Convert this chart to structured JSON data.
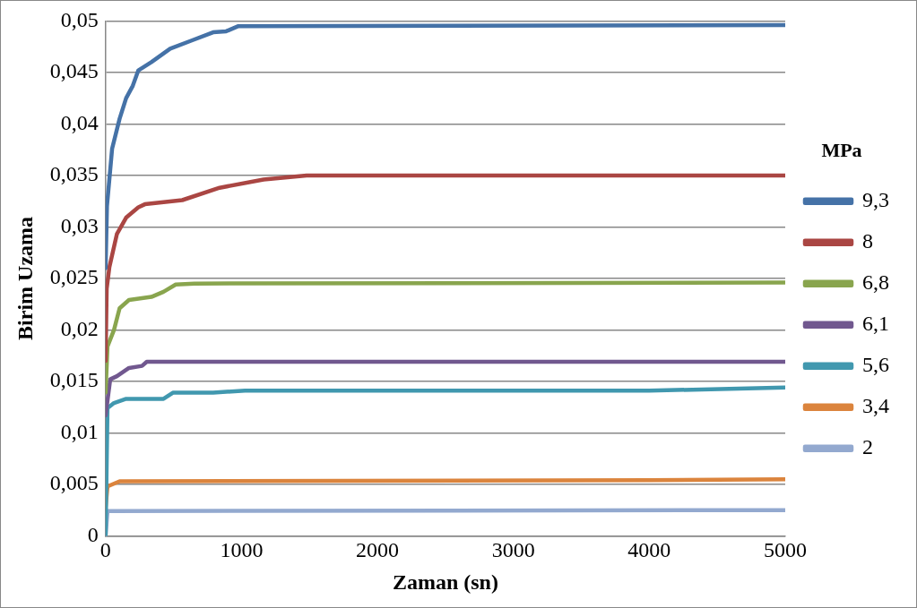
{
  "chart_data": {
    "type": "line",
    "xlabel": "Zaman (sn)",
    "ylabel": "Birim Uzama",
    "legend_title": "MPa",
    "xlim": [
      0,
      5000
    ],
    "xticks": [
      0,
      1000,
      2000,
      3000,
      4000,
      5000
    ],
    "ylim": [
      0,
      0.05
    ],
    "yticks": [
      {
        "value": 0,
        "label": "0"
      },
      {
        "value": 0.005,
        "label": "0,005"
      },
      {
        "value": 0.01,
        "label": "0,01"
      },
      {
        "value": 0.015,
        "label": "0,015"
      },
      {
        "value": 0.02,
        "label": "0,02"
      },
      {
        "value": 0.025,
        "label": "0,025"
      },
      {
        "value": 0.03,
        "label": "0,03"
      },
      {
        "value": 0.035,
        "label": "0,035"
      },
      {
        "value": 0.04,
        "label": "0,04"
      },
      {
        "value": 0.045,
        "label": "0,045"
      },
      {
        "value": 0.05,
        "label": "0,05"
      }
    ],
    "grid": "y",
    "legend": "right",
    "marker": "none",
    "line_style": "solid",
    "series": [
      {
        "name": "9,3",
        "color": "#4572a7",
        "x": [
          0,
          10,
          48,
          103,
          151,
          200,
          241,
          337,
          475,
          633,
          791,
          887,
          977,
          5000
        ],
        "values": [
          0.026,
          0.032,
          0.0376,
          0.0405,
          0.0425,
          0.0437,
          0.0452,
          0.046,
          0.0473,
          0.0481,
          0.0489,
          0.049,
          0.0495,
          0.0496
        ]
      },
      {
        "name": "8",
        "color": "#aa4643",
        "x": [
          0,
          8,
          28,
          83,
          151,
          241,
          289,
          564,
          839,
          1162,
          1479,
          5000
        ],
        "values": [
          0.017,
          0.024,
          0.0261,
          0.0293,
          0.0309,
          0.0319,
          0.0322,
          0.0326,
          0.0338,
          0.0346,
          0.035,
          0.035
        ]
      },
      {
        "name": "6,8",
        "color": "#89a54e",
        "x": [
          0,
          14,
          62,
          103,
          172,
          337,
          426,
          516,
          653,
          5000
        ],
        "values": [
          0.0139,
          0.0184,
          0.02,
          0.0221,
          0.0229,
          0.0232,
          0.0237,
          0.0244,
          0.0245,
          0.0246
        ]
      },
      {
        "name": "6,1",
        "color": "#71588f",
        "x": [
          0,
          34,
          83,
          172,
          268,
          303,
          5000
        ],
        "values": [
          0.0117,
          0.0152,
          0.0155,
          0.0163,
          0.0165,
          0.0169,
          0.0169
        ]
      },
      {
        "name": "5,6",
        "color": "#4198af",
        "x": [
          0,
          14,
          62,
          151,
          426,
          495,
          791,
          1025,
          4000,
          5000
        ],
        "values": [
          0,
          0.0124,
          0.0129,
          0.0133,
          0.0133,
          0.0139,
          0.0139,
          0.0141,
          0.0141,
          0.0144
        ]
      },
      {
        "name": "3,4",
        "color": "#db843d",
        "x": [
          0,
          14,
          103,
          4000,
          5000
        ],
        "values": [
          0.0028,
          0.0048,
          0.0053,
          0.0054,
          0.0055
        ]
      },
      {
        "name": "2",
        "color": "#93a9cf",
        "x": [
          0,
          14,
          5000
        ],
        "values": [
          0,
          0.0024,
          0.0025
        ]
      }
    ]
  }
}
